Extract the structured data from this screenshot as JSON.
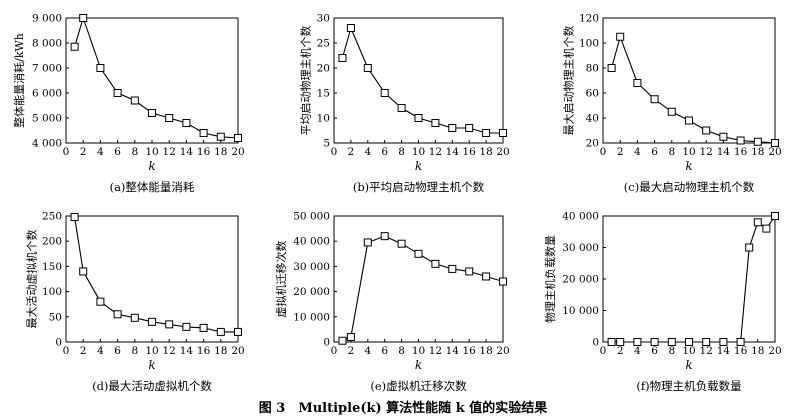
{
  "figure_caption": "图 3　Multiple(k) 算法性能随 k 值的实验结果",
  "chart_data": [
    {
      "type": "line",
      "caption": "(a)整体能量消耗",
      "xlabel": "k",
      "ylabel": "整体能量消耗/kWh",
      "xlim": [
        0,
        20
      ],
      "ylim": [
        4000,
        9000
      ],
      "xticks": [
        "0",
        "2",
        "4",
        "6",
        "8",
        "10",
        "12",
        "14",
        "16",
        "18",
        "20"
      ],
      "yticks": [
        "4 000",
        "5 000",
        "6 000",
        "7 000",
        "8 000",
        "9 000"
      ],
      "x": [
        1,
        2,
        4,
        6,
        8,
        10,
        12,
        14,
        16,
        18,
        20
      ],
      "values": [
        7850,
        9000,
        7000,
        6000,
        5700,
        5200,
        5000,
        4800,
        4400,
        4250,
        4200
      ]
    },
    {
      "type": "line",
      "caption": "(b)平均启动物理主机个数",
      "xlabel": "k",
      "ylabel": "平均启动物理主机个数",
      "xlim": [
        0,
        20
      ],
      "ylim": [
        5,
        30
      ],
      "xticks": [
        "0",
        "2",
        "4",
        "6",
        "8",
        "10",
        "12",
        "14",
        "16",
        "18",
        "20"
      ],
      "yticks": [
        "5",
        "10",
        "15",
        "20",
        "25",
        "30"
      ],
      "x": [
        1,
        2,
        4,
        6,
        8,
        10,
        12,
        14,
        16,
        18,
        20
      ],
      "values": [
        22,
        28,
        20,
        15,
        12,
        10,
        9,
        8,
        8,
        7,
        7
      ]
    },
    {
      "type": "line",
      "caption": "(c)最大启动物理主机个数",
      "xlabel": "k",
      "ylabel": "最大启动物理主机个数",
      "xlim": [
        0,
        20
      ],
      "ylim": [
        20,
        120
      ],
      "xticks": [
        "0",
        "2",
        "4",
        "6",
        "8",
        "10",
        "12",
        "14",
        "16",
        "18",
        "20"
      ],
      "yticks": [
        "20",
        "40",
        "60",
        "80",
        "100",
        "120"
      ],
      "x": [
        1,
        2,
        4,
        6,
        8,
        10,
        12,
        14,
        16,
        18,
        20
      ],
      "values": [
        80,
        105,
        68,
        55,
        45,
        38,
        30,
        25,
        22,
        21,
        20
      ]
    },
    {
      "type": "line",
      "caption": "(d)最大活动虚拟机个数",
      "xlabel": "k",
      "ylabel": "最大活动虚拟机个数",
      "xlim": [
        0,
        20
      ],
      "ylim": [
        0,
        250
      ],
      "xticks": [
        "0",
        "2",
        "4",
        "6",
        "8",
        "10",
        "12",
        "14",
        "16",
        "18",
        "20"
      ],
      "yticks": [
        "0",
        "50",
        "100",
        "150",
        "200",
        "250"
      ],
      "x": [
        1,
        2,
        4,
        6,
        8,
        10,
        12,
        14,
        16,
        18,
        20
      ],
      "values": [
        248,
        140,
        80,
        55,
        48,
        40,
        35,
        30,
        28,
        20,
        20
      ]
    },
    {
      "type": "line",
      "caption": "(e)虚拟机迁移次数",
      "xlabel": "k",
      "ylabel": "虚拟机迁移次数",
      "xlim": [
        0,
        20
      ],
      "ylim": [
        0,
        50000
      ],
      "xticks": [
        "0",
        "2",
        "4",
        "6",
        "8",
        "10",
        "12",
        "14",
        "16",
        "18",
        "20"
      ],
      "yticks": [
        "0",
        "10 000",
        "20 000",
        "30 000",
        "40 000",
        "50 000"
      ],
      "x": [
        1,
        2,
        4,
        6,
        8,
        10,
        12,
        14,
        16,
        18,
        20
      ],
      "values": [
        500,
        2000,
        39500,
        42000,
        39000,
        35000,
        31000,
        29000,
        28000,
        26000,
        24000
      ]
    },
    {
      "type": "line",
      "caption": "(f)物理主机负载数量",
      "xlabel": "k",
      "ylabel": "物理主机负载数量",
      "xlim": [
        0,
        20
      ],
      "ylim": [
        0,
        40000
      ],
      "xticks": [
        "0",
        "2",
        "4",
        "6",
        "8",
        "10",
        "12",
        "14",
        "16",
        "18",
        "20"
      ],
      "yticks": [
        "0",
        "10 000",
        "20 000",
        "30 000",
        "40 000"
      ],
      "x": [
        1,
        2,
        4,
        6,
        8,
        10,
        12,
        14,
        16,
        17,
        18,
        19,
        20
      ],
      "values": [
        0,
        0,
        0,
        0,
        0,
        0,
        0,
        0,
        0,
        30000,
        38000,
        36000,
        40000
      ]
    }
  ]
}
